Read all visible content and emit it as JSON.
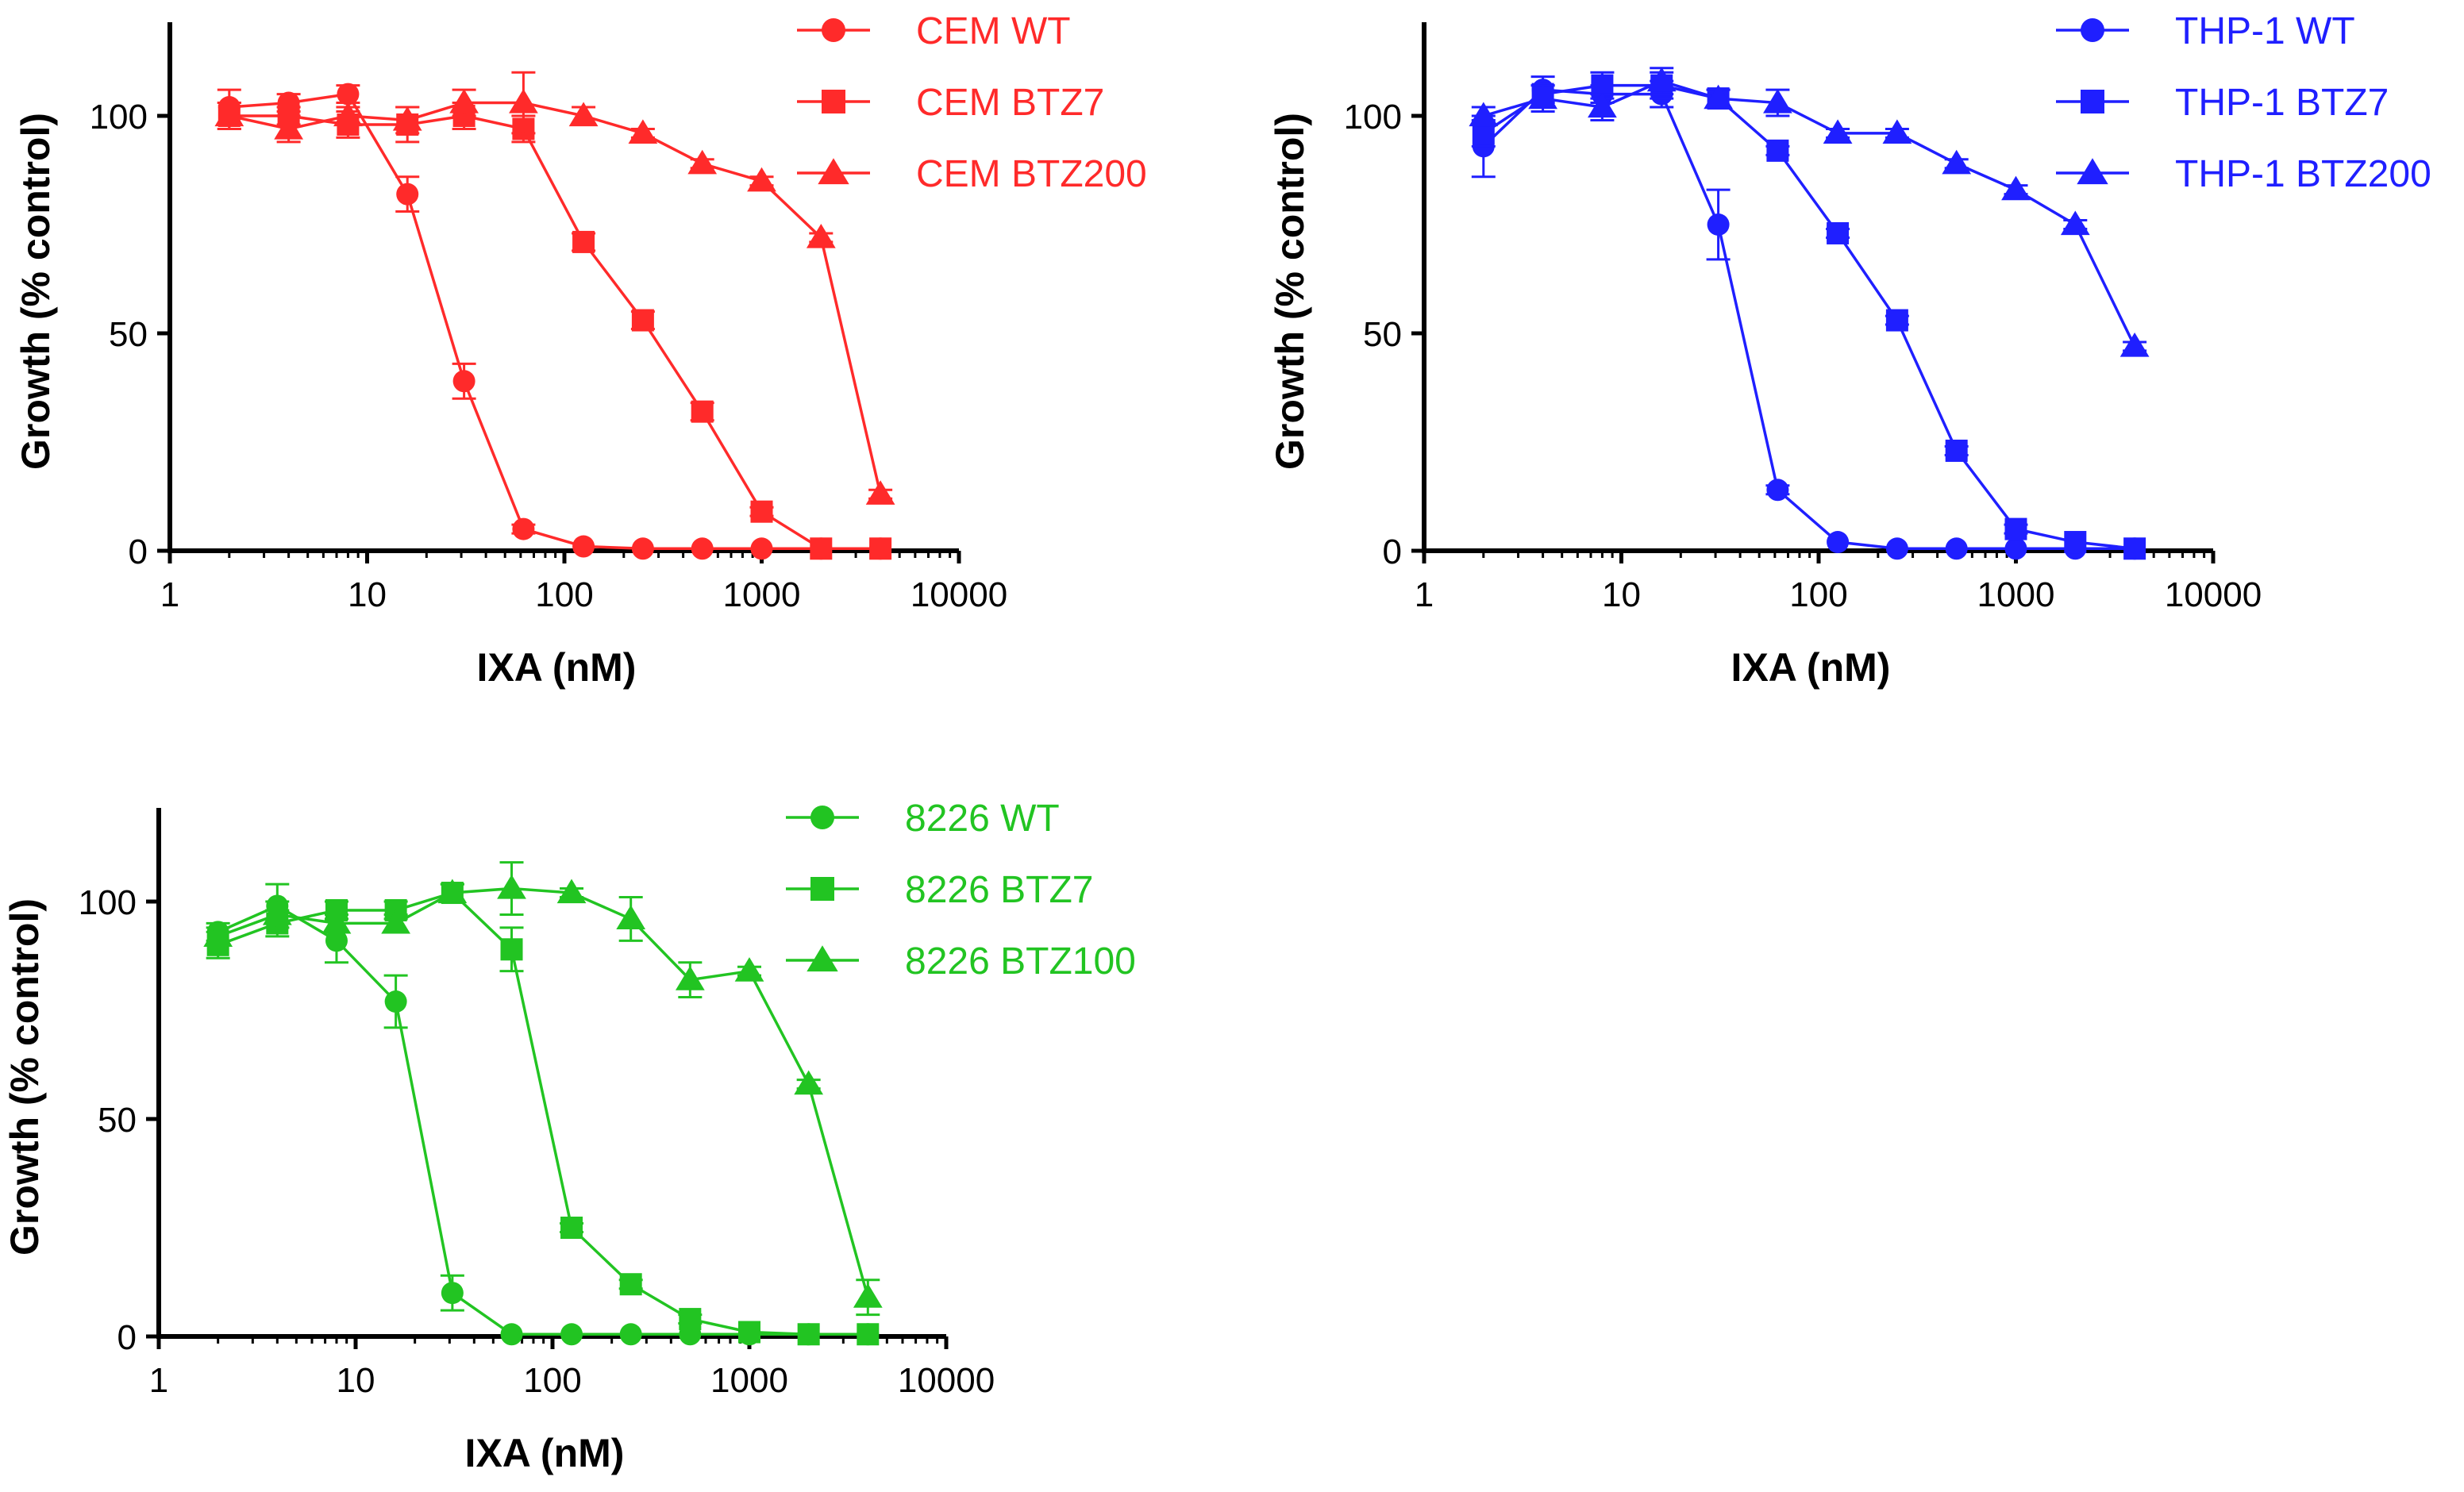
{
  "chart_data": [
    {
      "type": "line",
      "panel": "top-left",
      "title": "",
      "xlabel": "IXA (nM)",
      "ylabel": "Growth (% control)",
      "xscale": "log",
      "xlim": [
        1,
        10000
      ],
      "ylim": [
        0,
        120
      ],
      "xticks": [
        1,
        10,
        100,
        1000,
        10000
      ],
      "xtick_labels": [
        "1",
        "10",
        "100",
        "1000",
        "10000"
      ],
      "yticks": [
        0,
        50,
        100
      ],
      "ytick_labels": [
        "0",
        "50",
        "100"
      ],
      "color": "#ff2a2a",
      "legend_position": "top-right",
      "x": [
        2,
        4,
        8,
        16,
        31,
        62,
        125,
        250,
        500,
        1000,
        2000,
        4000
      ],
      "series": [
        {
          "name": "CEM WT",
          "marker": "circle",
          "values": [
            102,
            103,
            105,
            82,
            39,
            5,
            1,
            0.5,
            0.5,
            0.5,
            0.5,
            0.5
          ],
          "errors": [
            4,
            2,
            2,
            4,
            4,
            1,
            0,
            0,
            0,
            0,
            0,
            0
          ]
        },
        {
          "name": "CEM BTZ7",
          "marker": "square",
          "values": [
            100,
            100,
            98,
            98,
            100,
            97,
            71,
            53,
            32,
            9,
            0.5,
            0.5
          ],
          "errors": [
            3,
            2,
            3,
            4,
            3,
            3,
            2,
            2,
            2,
            1,
            0,
            0
          ]
        },
        {
          "name": "CEM BTZ200",
          "marker": "triangle",
          "values": [
            100,
            97,
            100,
            99,
            103,
            103,
            100,
            96,
            89,
            85,
            72,
            13
          ],
          "errors": [
            3,
            3,
            2,
            3,
            3,
            7,
            2,
            1,
            1,
            1,
            1,
            1
          ]
        }
      ]
    },
    {
      "type": "line",
      "panel": "top-right",
      "title": "",
      "xlabel": "IXA (nM)",
      "ylabel": "Growth (% control)",
      "xscale": "log",
      "xlim": [
        1,
        10000
      ],
      "ylim": [
        0,
        120
      ],
      "xticks": [
        1,
        10,
        100,
        1000,
        10000
      ],
      "xtick_labels": [
        "1",
        "10",
        "100",
        "1000",
        "10000"
      ],
      "yticks": [
        0,
        50,
        100
      ],
      "ytick_labels": [
        "0",
        "50",
        "100"
      ],
      "color": "#1f1fff",
      "legend_position": "top-right",
      "x": [
        2,
        4,
        8,
        16,
        31,
        62,
        125,
        250,
        500,
        1000,
        2000,
        4000
      ],
      "series": [
        {
          "name": "THP-1 WT",
          "marker": "circle",
          "values": [
            93,
            106,
            105,
            105,
            75,
            14,
            2,
            0.5,
            0.5,
            0.5,
            0.5,
            0.5
          ],
          "errors": [
            7,
            3,
            2,
            3,
            8,
            1,
            0,
            0,
            0,
            0,
            0,
            0
          ]
        },
        {
          "name": "THP-1 BTZ7",
          "marker": "square",
          "values": [
            96,
            105,
            107,
            107,
            104,
            92,
            73,
            53,
            23,
            5,
            2,
            0.5
          ],
          "errors": [
            3,
            2,
            3,
            3,
            2,
            1,
            1,
            1,
            1,
            1,
            0,
            0
          ]
        },
        {
          "name": "THP-1 BTZ200",
          "marker": "triangle",
          "values": [
            100,
            104,
            102,
            108,
            104,
            103,
            96,
            96,
            89,
            83,
            75,
            47
          ],
          "errors": [
            2,
            3,
            3,
            3,
            2,
            3,
            1,
            1,
            1,
            1,
            1,
            1
          ]
        }
      ]
    },
    {
      "type": "line",
      "panel": "bottom-left",
      "title": "",
      "xlabel": "IXA (nM)",
      "ylabel": "Growth (% control)",
      "xscale": "log",
      "xlim": [
        1,
        10000
      ],
      "ylim": [
        0,
        120
      ],
      "xticks": [
        1,
        10,
        100,
        1000,
        10000
      ],
      "xtick_labels": [
        "1",
        "10",
        "100",
        "1000",
        "10000"
      ],
      "yticks": [
        0,
        50,
        100
      ],
      "ytick_labels": [
        "0",
        "50",
        "100"
      ],
      "color": "#22c422",
      "legend_position": "top-right",
      "x": [
        2,
        4,
        8,
        16,
        31,
        62,
        125,
        250,
        500,
        1000,
        2000,
        4000
      ],
      "series": [
        {
          "name": "8226 WT",
          "marker": "circle",
          "values": [
            93,
            99,
            91,
            77,
            10,
            0.5,
            0.5,
            0.5,
            0.5,
            0.5,
            0.5,
            0.5
          ],
          "errors": [
            2,
            5,
            5,
            6,
            4,
            0,
            0,
            0,
            0,
            0,
            0,
            0
          ]
        },
        {
          "name": "8226 BTZ7",
          "marker": "square",
          "values": [
            90,
            95,
            98,
            98,
            102,
            89,
            25,
            12,
            4,
            1,
            0.5,
            0.5
          ],
          "errors": [
            3,
            3,
            2,
            2,
            2,
            5,
            1,
            1,
            1,
            0,
            0,
            0
          ]
        },
        {
          "name": "8226 BTZ100",
          "marker": "triangle",
          "values": [
            92,
            97,
            95,
            95,
            102,
            103,
            102,
            96,
            82,
            84,
            58,
            9
          ],
          "errors": [
            2,
            3,
            2,
            2,
            2,
            6,
            1,
            5,
            4,
            1,
            1,
            4
          ]
        }
      ]
    }
  ]
}
